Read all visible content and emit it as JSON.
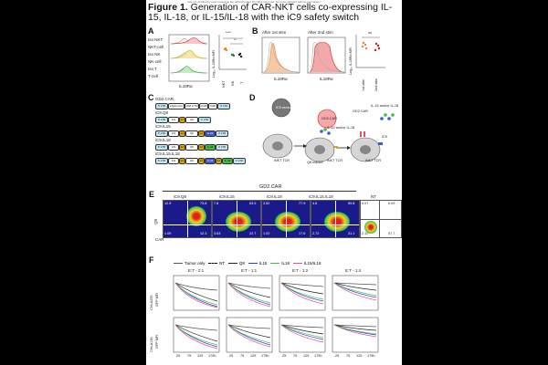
{
  "notice": "was not certified by peer review) is the author/funder. All rights reserved. No reuse allowed without permission.",
  "title_bold": "Figure 1.",
  "title_text": " Generation of CAR-NKT cells co-expressing IL-15, IL-18, or IL-15/IL-18 with the iC9 safety switch",
  "panels": {
    "A": "A",
    "B": "B",
    "C": "C",
    "D": "D",
    "E": "E",
    "F": "F"
  },
  "panelA": {
    "histogram_labels": [
      "Iso NKT",
      "NKT-cell",
      "Iso NK",
      "NK-cell",
      "Iso T",
      "T-cell"
    ],
    "xlabel": "IL18Rα",
    "ylabel": "Log₁₀ IL18Rα MFI",
    "categories": [
      "NKT",
      "NK",
      "T"
    ],
    "sig": [
      "****",
      "**",
      "*"
    ]
  },
  "panelB": {
    "stim1": "After 1st stim",
    "stim2": "After 2nd stim",
    "xlabel": "IL18Rα",
    "ylabel": "Log₁₀ IL18Rα MFI",
    "categories": [
      "1st stim",
      "2nd stim"
    ],
    "ns": "ns"
  },
  "panelC": {
    "constructs": [
      {
        "name": "GD2.CAR",
        "parts": [
          "5' LTR",
          "14g2a scFv",
          "CD8 H TM",
          "CD28",
          "CD3ζ",
          "3' LTR"
        ]
      },
      {
        "name": "iC9.Q8",
        "parts": [
          "5' LTR",
          "iC9",
          "2A",
          "Q8",
          "3' LTR"
        ]
      },
      {
        "name": "iC9.IL15",
        "parts": [
          "5' LTR",
          "iC9",
          "2A",
          "Q8",
          "2A",
          "IL-15",
          "3' LTR"
        ]
      },
      {
        "name": "iC9.IL18",
        "parts": [
          "5' LTR",
          "iC9",
          "2A",
          "Q8",
          "2A",
          "IL-18",
          "3' LTR"
        ]
      },
      {
        "name": "iC9.IL15.IL18",
        "parts": [
          "5' LTR",
          "iC9",
          "2A",
          "Q8",
          "2A",
          "IL-15",
          "2A",
          "IL-18",
          "3' LTR"
        ]
      }
    ]
  },
  "panelD": {
    "vector1": "iC9 vector",
    "vector2": "GD2.CAR",
    "cell_labels": [
      "iNKT TCR",
      "Q8 marker",
      "iNKT TCR",
      "iNKT TCR"
    ],
    "cytokine1": "IL-15 and/or IL-18",
    "car_label": "GD2.CAR",
    "cytokine2": "IL-15 and/or IL-18",
    "ic9": "iC9"
  },
  "panelE": {
    "header": "GD2.CAR",
    "plots": [
      "iC9.Q8",
      "iC9.IL15",
      "iC9.IL18",
      "iC9.IL15.IL18",
      "NT"
    ],
    "quadrants": [
      [
        "12.9",
        "73.8",
        "1.09",
        "12.3"
      ],
      [
        "7.8",
        "63.9",
        "3.63",
        "22.7"
      ],
      [
        "3.52",
        "77.9",
        "1.02",
        "17.6"
      ],
      [
        "4.8",
        "59.8",
        "2.72",
        "31.1"
      ],
      [
        "0.07",
        "0.09",
        "2.11",
        "97.7"
      ]
    ],
    "xlabel": "CAR",
    "ylabel": "Q8"
  },
  "panelF": {
    "legend": [
      "Tumor only",
      "NT",
      "Q8",
      "IL15",
      "IL18",
      "IL15/IL18"
    ],
    "legend_colors": [
      "#555555",
      "#000000",
      "#222222",
      "#1f3fd6",
      "#3fbf3f",
      "#e04fa0"
    ],
    "ratios": [
      "E:T - 2:1",
      "E:T - 1:1",
      "E:T - 1:2",
      "E:T - 1:4"
    ],
    "rows": [
      "CHLA255",
      "CHLA136"
    ],
    "ylabel": "GFP MFI",
    "xticks": [
      "25",
      "75",
      "125",
      "175h"
    ]
  }
}
